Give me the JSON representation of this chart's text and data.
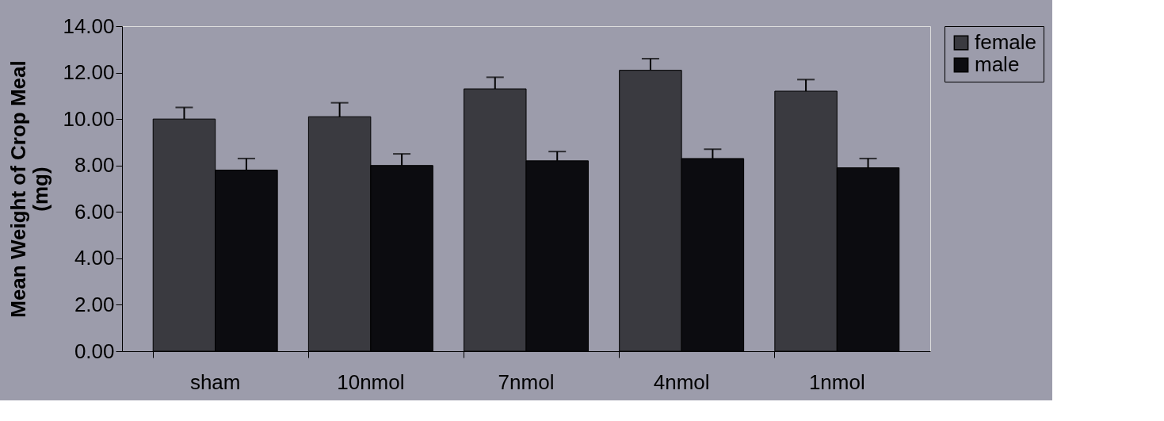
{
  "chart_data": {
    "type": "bar",
    "ylabel": "Mean Weight of Crop Meal\n(mg)",
    "categories": [
      "sham",
      "10nmol",
      "7nmol",
      "4nmol",
      "1nmol"
    ],
    "series": [
      {
        "name": "female",
        "color": "#3a3a40",
        "values": [
          10.0,
          10.1,
          11.3,
          12.1,
          11.2
        ],
        "errors": [
          [
            10.0,
            10.5
          ],
          [
            10.1,
            10.7
          ],
          [
            11.3,
            11.8
          ],
          [
            12.1,
            12.6
          ],
          [
            11.2,
            11.7
          ]
        ]
      },
      {
        "name": "male",
        "color": "#0c0c10",
        "values": [
          7.8,
          8.0,
          8.2,
          8.3,
          7.9
        ],
        "errors": [
          [
            7.8,
            8.3
          ],
          [
            8.0,
            8.5
          ],
          [
            8.2,
            8.6
          ],
          [
            8.3,
            8.7
          ],
          [
            7.9,
            8.3
          ]
        ]
      }
    ],
    "ylim": [
      0,
      14
    ],
    "yticks": [
      {
        "value": 0,
        "label": "0.00"
      },
      {
        "value": 2,
        "label": "2.00"
      },
      {
        "value": 4,
        "label": "4.00"
      },
      {
        "value": 6,
        "label": "6.00"
      },
      {
        "value": 8,
        "label": "8.00"
      },
      {
        "value": 10,
        "label": "10.00"
      },
      {
        "value": 12,
        "label": "12.00"
      },
      {
        "value": 14,
        "label": "14.00"
      }
    ],
    "legend": "right",
    "grid": false
  }
}
